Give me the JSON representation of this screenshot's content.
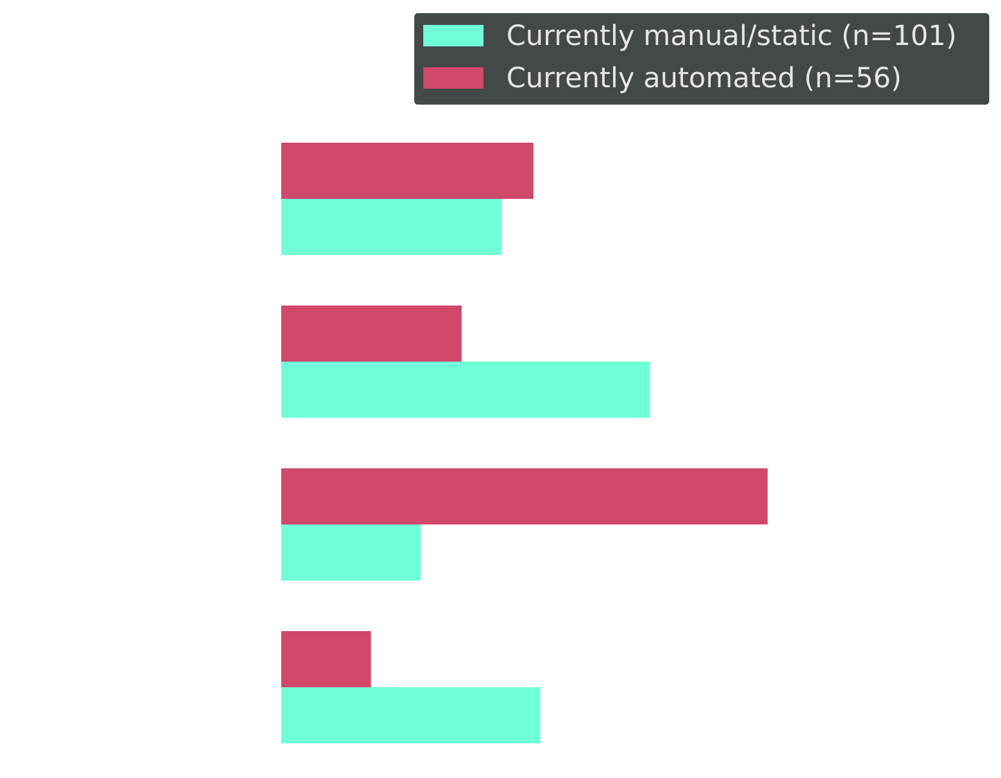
{
  "chart_data": {
    "type": "barh",
    "categories": [
      null,
      null,
      null,
      null
    ],
    "series": [
      {
        "name": "Currently manual/static (n=101)",
        "color": "#70ffd6",
        "values": [
          22.1,
          37.0,
          14.0,
          26.0
        ]
      },
      {
        "name": "Currently automated (n=56)",
        "color": "#d0486a",
        "values": [
          25.3,
          18.1,
          48.8,
          9.0
        ]
      }
    ],
    "xlim": [
      0,
      72
    ],
    "legend": "upper right"
  }
}
